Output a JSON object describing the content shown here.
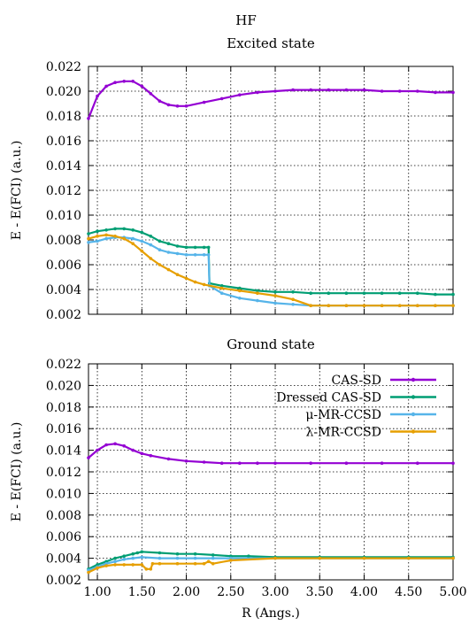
{
  "figure_title": "HF",
  "xlabel": "R (Angs.)",
  "colors": {
    "CAS-SD": "#9400d3",
    "Dressed CAS-SD": "#009e73",
    "μ-MR-CCSD": "#56b4e9",
    "λ-MR-CCSD": "#e69f00"
  },
  "legend_position": "top-right of Ground state panel",
  "chart_data": [
    {
      "type": "line",
      "title": "Excited state",
      "ylabel": "E - E(FCI) (a.u.)",
      "xlim": [
        0.9,
        5.0
      ],
      "ylim": [
        0.002,
        0.022
      ],
      "grid": true,
      "xticks": [
        "1.00",
        "1.50",
        "2.00",
        "2.50",
        "3.00",
        "3.50",
        "4.00",
        "4.50",
        "5.00"
      ],
      "xtick_values": [
        1.0,
        1.5,
        2.0,
        2.5,
        3.0,
        3.5,
        4.0,
        4.5,
        5.0
      ],
      "yticks": [
        "0.002",
        "0.004",
        "0.006",
        "0.008",
        "0.010",
        "0.012",
        "0.014",
        "0.016",
        "0.018",
        "0.020",
        "0.022"
      ],
      "ytick_values": [
        0.002,
        0.004,
        0.006,
        0.008,
        0.01,
        0.012,
        0.014,
        0.016,
        0.018,
        0.02,
        0.022
      ],
      "series": [
        {
          "name": "CAS-SD",
          "x": [
            0.9,
            1.0,
            1.1,
            1.2,
            1.3,
            1.4,
            1.5,
            1.6,
            1.7,
            1.8,
            1.9,
            2.0,
            2.2,
            2.4,
            2.6,
            2.8,
            3.0,
            3.2,
            3.4,
            3.6,
            3.8,
            4.0,
            4.2,
            4.4,
            4.6,
            4.8,
            5.0
          ],
          "y": [
            0.0178,
            0.0196,
            0.0204,
            0.0207,
            0.0208,
            0.0208,
            0.0204,
            0.0198,
            0.0192,
            0.0189,
            0.0188,
            0.0188,
            0.0191,
            0.0194,
            0.0197,
            0.0199,
            0.02,
            0.0201,
            0.0201,
            0.0201,
            0.0201,
            0.0201,
            0.02,
            0.02,
            0.02,
            0.0199,
            0.0199
          ]
        },
        {
          "name": "Dressed CAS-SD",
          "x": [
            0.9,
            1.0,
            1.1,
            1.2,
            1.3,
            1.4,
            1.5,
            1.6,
            1.7,
            1.8,
            1.9,
            2.0,
            2.1,
            2.2,
            2.25,
            2.26,
            2.4,
            2.6,
            2.8,
            3.0,
            3.2,
            3.4,
            3.6,
            3.8,
            4.0,
            4.2,
            4.4,
            4.6,
            4.8,
            5.0
          ],
          "y": [
            0.0085,
            0.0087,
            0.0088,
            0.0089,
            0.0089,
            0.0088,
            0.0086,
            0.0083,
            0.0079,
            0.0077,
            0.0075,
            0.0074,
            0.0074,
            0.0074,
            0.0074,
            0.0045,
            0.0043,
            0.0041,
            0.0039,
            0.0038,
            0.0038,
            0.0037,
            0.0037,
            0.0037,
            0.0037,
            0.0037,
            0.0037,
            0.0037,
            0.0036,
            0.0036
          ]
        },
        {
          "name": "μ-MR-CCSD",
          "x": [
            0.9,
            1.0,
            1.1,
            1.2,
            1.3,
            1.4,
            1.5,
            1.6,
            1.7,
            1.8,
            1.9,
            2.0,
            2.1,
            2.2,
            2.25,
            2.26,
            2.4,
            2.6,
            2.8,
            3.0,
            3.2,
            3.4,
            3.6,
            3.8,
            4.0,
            4.2,
            4.4,
            4.6,
            4.8,
            5.0
          ],
          "y": [
            0.0078,
            0.0079,
            0.0081,
            0.0082,
            0.0082,
            0.0081,
            0.0079,
            0.0076,
            0.0072,
            0.007,
            0.0069,
            0.0068,
            0.0068,
            0.0068,
            0.0068,
            0.0043,
            0.0037,
            0.0033,
            0.0031,
            0.0029,
            0.0028,
            0.0027,
            0.0027,
            0.0027,
            0.0027,
            0.0027,
            0.0027,
            0.0027,
            0.0027,
            0.0027
          ]
        },
        {
          "name": "λ-MR-CCSD",
          "x": [
            0.9,
            1.0,
            1.1,
            1.2,
            1.3,
            1.4,
            1.5,
            1.6,
            1.7,
            1.8,
            1.9,
            2.0,
            2.1,
            2.2,
            2.4,
            2.6,
            2.8,
            3.0,
            3.2,
            3.4,
            3.6,
            3.8,
            4.0,
            4.2,
            4.4,
            4.6,
            4.8,
            5.0
          ],
          "y": [
            0.0081,
            0.0083,
            0.0084,
            0.0083,
            0.0081,
            0.0077,
            0.0071,
            0.0065,
            0.006,
            0.0056,
            0.0052,
            0.0049,
            0.0046,
            0.0044,
            0.0041,
            0.0039,
            0.0037,
            0.0035,
            0.0032,
            0.0027,
            0.0027,
            0.0027,
            0.0027,
            0.0027,
            0.0027,
            0.0027,
            0.0027,
            0.0027
          ]
        }
      ]
    },
    {
      "type": "line",
      "title": "Ground state",
      "ylabel": "E - E(FCI) (a.u.)",
      "xlim": [
        0.9,
        5.0
      ],
      "ylim": [
        0.002,
        0.022
      ],
      "grid": true,
      "xticks": [
        "1.00",
        "1.50",
        "2.00",
        "2.50",
        "3.00",
        "3.50",
        "4.00",
        "4.50",
        "5.00"
      ],
      "xtick_values": [
        1.0,
        1.5,
        2.0,
        2.5,
        3.0,
        3.5,
        4.0,
        4.5,
        5.0
      ],
      "yticks": [
        "0.002",
        "0.004",
        "0.006",
        "0.008",
        "0.010",
        "0.012",
        "0.014",
        "0.016",
        "0.018",
        "0.020",
        "0.022"
      ],
      "ytick_values": [
        0.002,
        0.004,
        0.006,
        0.008,
        0.01,
        0.012,
        0.014,
        0.016,
        0.018,
        0.02,
        0.022
      ],
      "series": [
        {
          "name": "CAS-SD",
          "x": [
            0.9,
            1.0,
            1.1,
            1.2,
            1.3,
            1.4,
            1.5,
            1.6,
            1.8,
            2.0,
            2.2,
            2.4,
            2.6,
            2.8,
            3.0,
            3.4,
            3.8,
            4.2,
            4.6,
            5.0
          ],
          "y": [
            0.0133,
            0.014,
            0.0145,
            0.0146,
            0.0144,
            0.014,
            0.0137,
            0.0135,
            0.0132,
            0.013,
            0.0129,
            0.0128,
            0.0128,
            0.0128,
            0.0128,
            0.0128,
            0.0128,
            0.0128,
            0.0128,
            0.0128
          ]
        },
        {
          "name": "Dressed CAS-SD",
          "x": [
            0.9,
            1.0,
            1.1,
            1.2,
            1.3,
            1.4,
            1.45,
            1.5,
            1.7,
            1.9,
            2.1,
            2.3,
            2.5,
            2.7,
            3.0,
            3.5,
            4.0,
            4.5,
            5.0
          ],
          "y": [
            0.003,
            0.0034,
            0.0037,
            0.004,
            0.0042,
            0.0044,
            0.0045,
            0.0046,
            0.0045,
            0.0044,
            0.0044,
            0.0043,
            0.0042,
            0.0042,
            0.0041,
            0.0041,
            0.0041,
            0.0041,
            0.0041
          ]
        },
        {
          "name": "μ-MR-CCSD",
          "x": [
            0.9,
            1.0,
            1.1,
            1.2,
            1.3,
            1.4,
            1.5,
            1.7,
            1.9,
            2.1,
            2.3,
            2.5,
            3.0,
            3.5,
            4.0,
            4.5,
            5.0
          ],
          "y": [
            0.0029,
            0.0032,
            0.0035,
            0.0037,
            0.0039,
            0.004,
            0.0041,
            0.004,
            0.004,
            0.004,
            0.004,
            0.004,
            0.004,
            0.004,
            0.004,
            0.004,
            0.004
          ]
        },
        {
          "name": "λ-MR-CCSD",
          "x": [
            0.9,
            1.0,
            1.1,
            1.2,
            1.3,
            1.4,
            1.5,
            1.55,
            1.6,
            1.62,
            1.7,
            1.9,
            2.1,
            2.2,
            2.25,
            2.3,
            2.5,
            3.0,
            3.5,
            4.0,
            4.5,
            5.0
          ],
          "y": [
            0.0027,
            0.0031,
            0.0033,
            0.0034,
            0.0034,
            0.0034,
            0.0034,
            0.003,
            0.003,
            0.0035,
            0.0035,
            0.0035,
            0.0035,
            0.0035,
            0.0037,
            0.0035,
            0.0038,
            0.004,
            0.004,
            0.004,
            0.004,
            0.004
          ]
        }
      ]
    }
  ]
}
